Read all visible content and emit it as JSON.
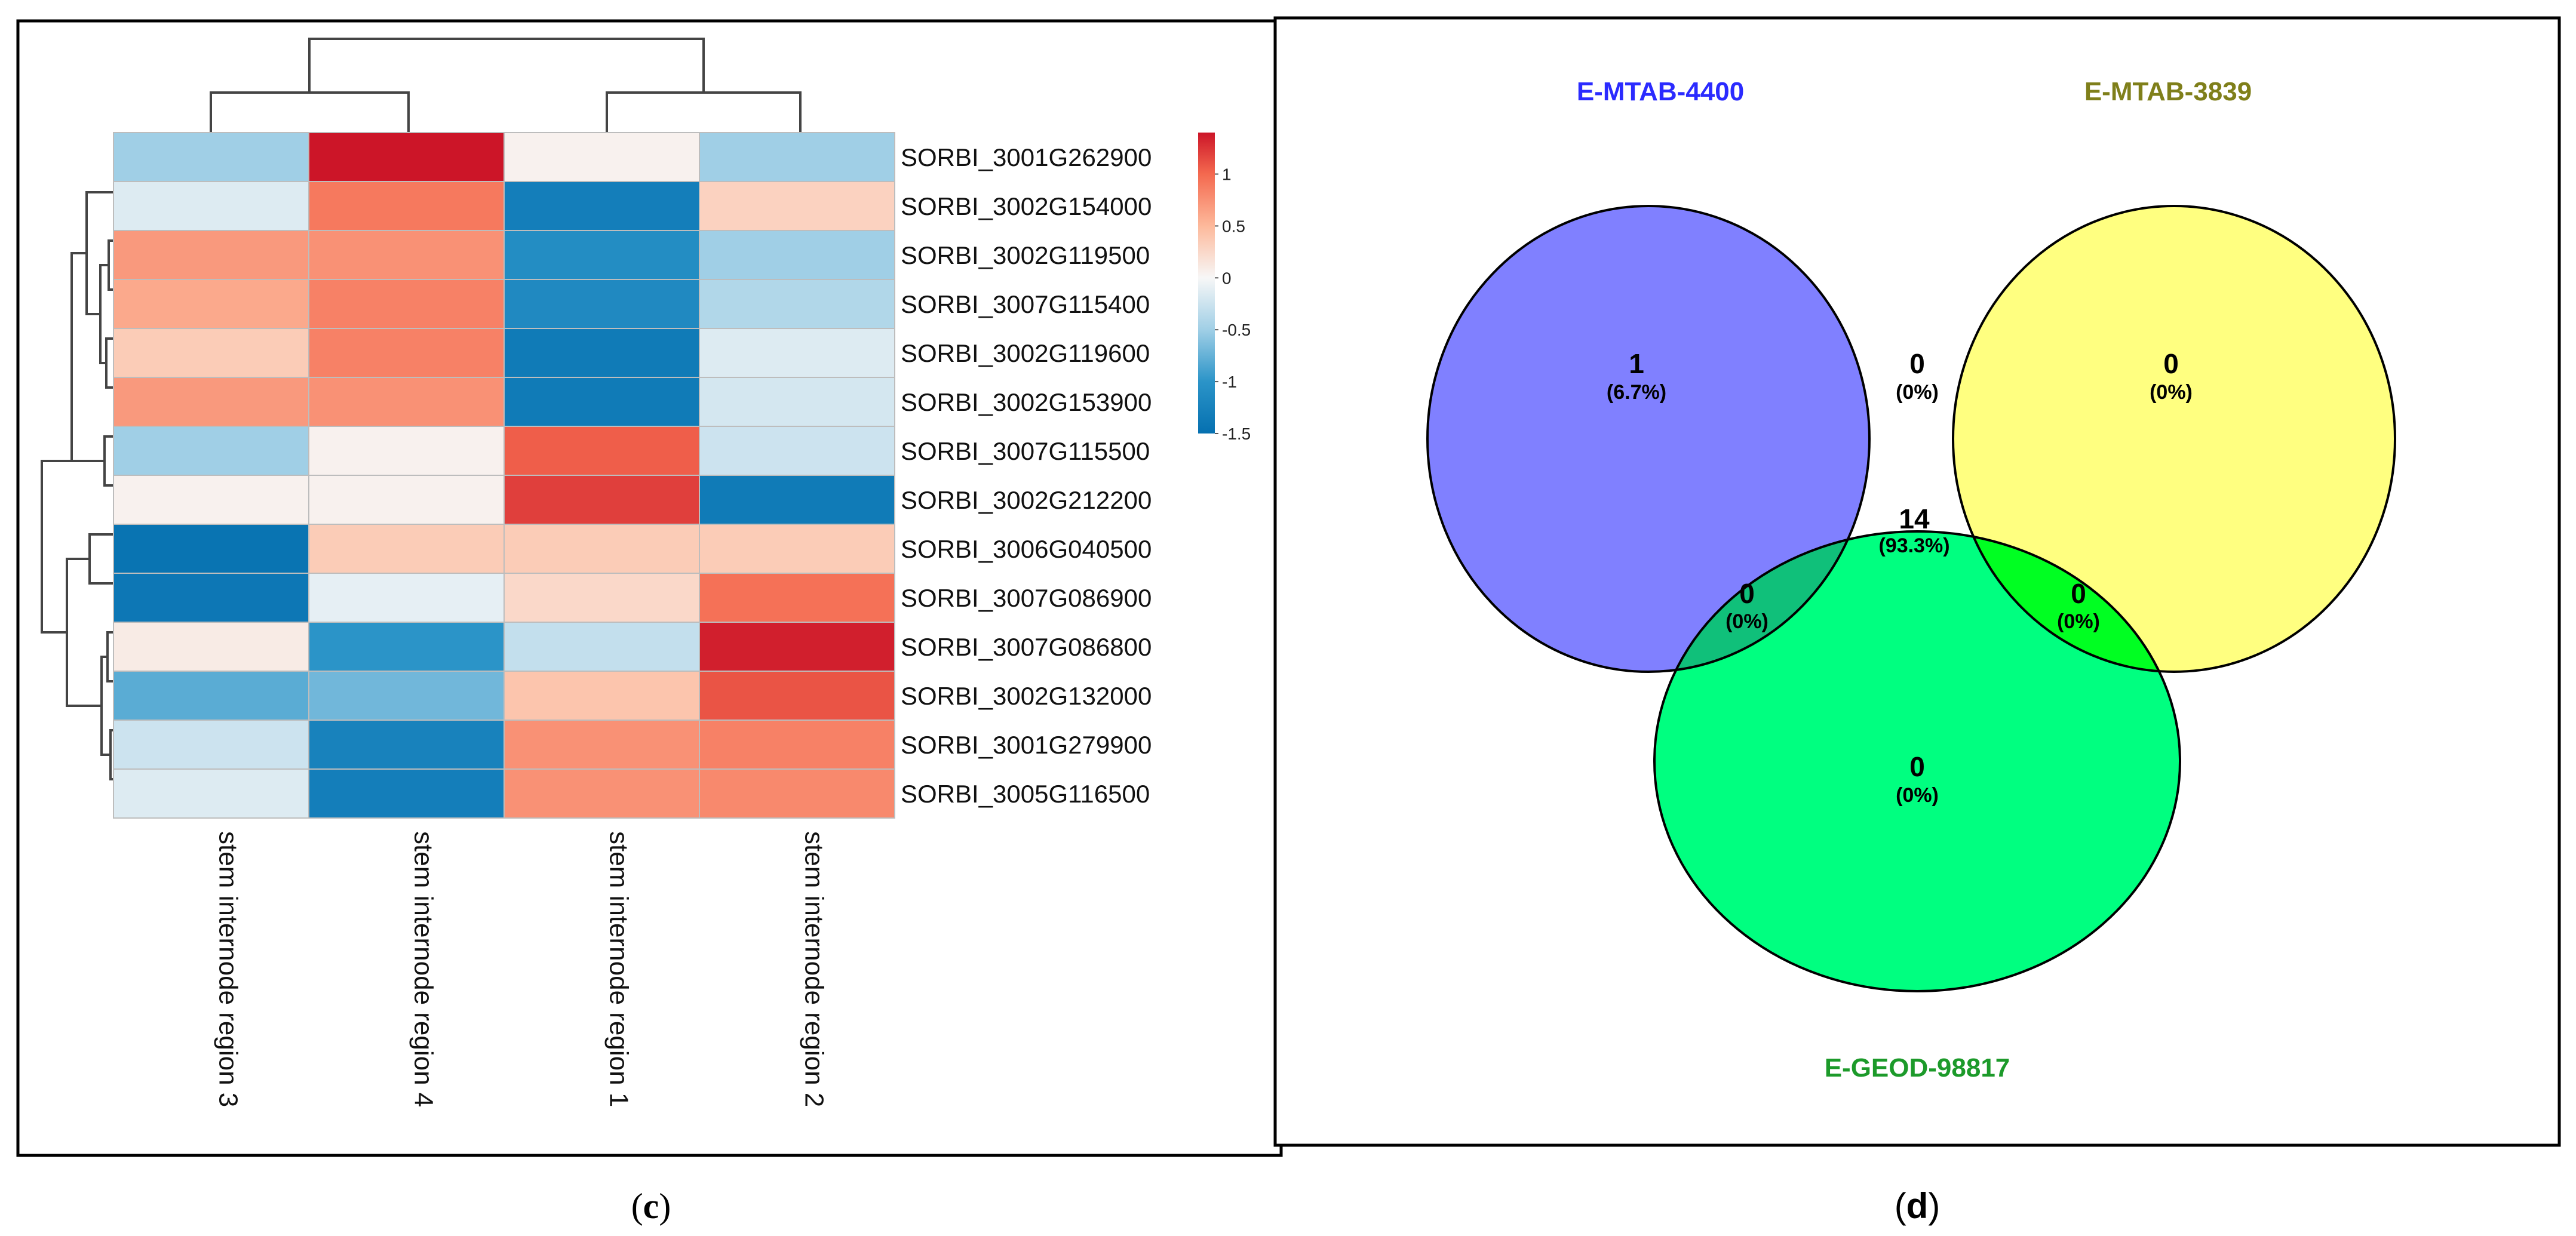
{
  "panels": [
    {
      "caption_letter": "c",
      "chart_data": {
        "type": "heatmap",
        "columns": [
          "stem internode region 3",
          "stem internode region 4",
          "stem internode region 1",
          "stem internode region 2"
        ],
        "rows": [
          "SORBI_3001G262900",
          "SORBI_3002G154000",
          "SORBI_3002G119500",
          "SORBI_3007G115400",
          "SORBI_3002G119600",
          "SORBI_3002G153900",
          "SORBI_3007G115500",
          "SORBI_3002G212200",
          "SORBI_3006G040500",
          "SORBI_3007G086900",
          "SORBI_3007G086800",
          "SORBI_3002G132000",
          "SORBI_3001G279900",
          "SORBI_3005G116500"
        ],
        "values": [
          [
            -0.5,
            1.4,
            0.05,
            -0.5
          ],
          [
            -0.15,
            0.9,
            -1.3,
            0.3
          ],
          [
            0.7,
            0.75,
            -1.1,
            -0.5
          ],
          [
            0.6,
            0.85,
            -1.15,
            -0.4
          ],
          [
            0.35,
            0.85,
            -1.35,
            -0.15
          ],
          [
            0.7,
            0.75,
            -1.35,
            -0.2
          ],
          [
            -0.5,
            0.05,
            1.05,
            -0.25
          ],
          [
            0.05,
            0.05,
            1.2,
            -1.35
          ],
          [
            -1.45,
            0.35,
            0.35,
            0.35
          ],
          [
            -1.4,
            -0.1,
            0.25,
            0.95
          ],
          [
            0.1,
            -1.0,
            -0.3,
            1.35
          ],
          [
            -0.8,
            -0.7,
            0.4,
            1.1
          ],
          [
            -0.25,
            -1.25,
            0.75,
            0.85
          ],
          [
            -0.15,
            -1.3,
            0.75,
            0.8
          ]
        ],
        "color_scale": {
          "min": -1.5,
          "max": 1.4,
          "stops": [
            [
              -1.5,
              "#0570b0"
            ],
            [
              -1.0,
              "#2b94c8"
            ],
            [
              -0.5,
              "#a0cfe6"
            ],
            [
              0,
              "#f7f7f7"
            ],
            [
              0.5,
              "#fdb99b"
            ],
            [
              1.0,
              "#f4694f"
            ],
            [
              1.4,
              "#cc1528"
            ]
          ]
        },
        "legend_ticks": [
          "1",
          "0.5",
          "0",
          "-0.5",
          "-1",
          "-1.5"
        ],
        "legend_tick_values": [
          1,
          0.5,
          0,
          -0.5,
          -1,
          -1.5
        ],
        "column_dendrogram": [
          [
            0,
            1
          ],
          [
            2,
            3
          ],
          [
            [
              0,
              1
            ],
            [
              2,
              3
            ]
          ]
        ],
        "row_dendrogram": "hierarchical clustering tree (rows)"
      }
    },
    {
      "caption_letter": "d",
      "chart_data": {
        "type": "venn",
        "sets": [
          {
            "name": "E-MTAB-4400",
            "color": "#7b7bff",
            "label_color": "#2b2bff"
          },
          {
            "name": "E-MTAB-3839",
            "color": "#ffff77",
            "label_color": "#7f7f1a"
          },
          {
            "name": "E-GEOD-98817",
            "color": "#00ff80",
            "label_color": "#1c9a2a"
          }
        ],
        "regions": [
          {
            "id": "only_a",
            "count": "1",
            "pct": "(6.7%)",
            "color": "#8080ff"
          },
          {
            "id": "a_b",
            "count": "0",
            "pct": "(0%)",
            "color": "#c0c080"
          },
          {
            "id": "only_b",
            "count": "0",
            "pct": "(0%)",
            "color": "#ffff80"
          },
          {
            "id": "abc",
            "count": "14",
            "pct": "(93.3%)",
            "color": "#12cc33"
          },
          {
            "id": "a_c",
            "count": "0",
            "pct": "(0%)",
            "color": "#10c07a"
          },
          {
            "id": "b_c",
            "count": "0",
            "pct": "(0%)",
            "color": "#00ff22"
          },
          {
            "id": "only_c",
            "count": "0",
            "pct": "(0%)",
            "color": "#00ff80"
          }
        ]
      }
    }
  ]
}
